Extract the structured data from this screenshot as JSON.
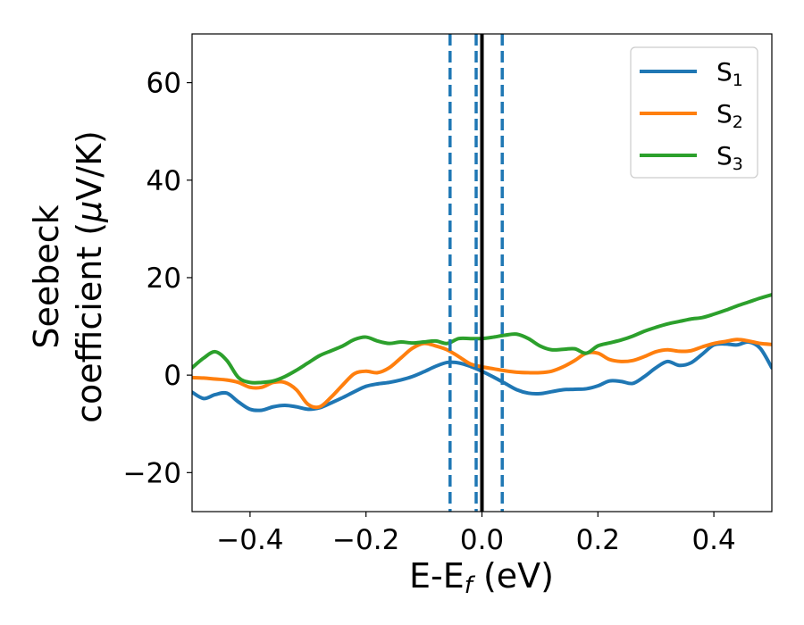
{
  "chart_data": {
    "type": "line",
    "xlabel": "E-E",
    "xlabel_sub": "f",
    "xlabel_unit": " (eV)",
    "ylabel_line1": "Seebeck",
    "ylabel_line2": "coefficient  (",
    "ylabel_mu": "μ",
    "ylabel_unit": "V/K)",
    "xlim": [
      -0.5,
      0.5
    ],
    "ylim": [
      -28,
      70
    ],
    "xticks": [
      -0.4,
      -0.2,
      0.0,
      0.2,
      0.4
    ],
    "xtick_labels": [
      "−0.4",
      "−0.2",
      "0.0",
      "0.2",
      "0.4"
    ],
    "yticks": [
      -20,
      0,
      20,
      40,
      60
    ],
    "ytick_labels": [
      "−20",
      "0",
      "20",
      "40",
      "60"
    ],
    "legend_position": "top-right",
    "vlines": {
      "solid": {
        "x": 0.0,
        "color": "#000000"
      },
      "dashed": {
        "x": [
          -0.055,
          -0.01,
          0.035
        ],
        "color": "#1f77b4"
      }
    },
    "series": [
      {
        "name": "S",
        "subscript": "1",
        "color": "#1f77b4",
        "points": [
          [
            -0.5,
            -3.5
          ],
          [
            -0.48,
            -4.8
          ],
          [
            -0.46,
            -4
          ],
          [
            -0.44,
            -3.7
          ],
          [
            -0.42,
            -5.5
          ],
          [
            -0.4,
            -7
          ],
          [
            -0.38,
            -7.2
          ],
          [
            -0.36,
            -6.5
          ],
          [
            -0.34,
            -6.2
          ],
          [
            -0.32,
            -6.5
          ],
          [
            -0.3,
            -7
          ],
          [
            -0.28,
            -6.7
          ],
          [
            -0.26,
            -5.7
          ],
          [
            -0.24,
            -4.6
          ],
          [
            -0.22,
            -3.4
          ],
          [
            -0.2,
            -2.3
          ],
          [
            -0.18,
            -1.8
          ],
          [
            -0.16,
            -1.5
          ],
          [
            -0.14,
            -1
          ],
          [
            -0.12,
            -0.3
          ],
          [
            -0.1,
            0.7
          ],
          [
            -0.08,
            1.8
          ],
          [
            -0.06,
            2.6
          ],
          [
            -0.04,
            2.5
          ],
          [
            -0.02,
            1.8
          ],
          [
            0,
            0.8
          ],
          [
            0.02,
            -0.4
          ],
          [
            0.04,
            -1.7
          ],
          [
            0.06,
            -3
          ],
          [
            0.08,
            -3.7
          ],
          [
            0.1,
            -3.8
          ],
          [
            0.12,
            -3.4
          ],
          [
            0.14,
            -3
          ],
          [
            0.16,
            -2.9
          ],
          [
            0.18,
            -2.8
          ],
          [
            0.2,
            -2.2
          ],
          [
            0.22,
            -1.2
          ],
          [
            0.24,
            -1.3
          ],
          [
            0.26,
            -1.7
          ],
          [
            0.28,
            -0.3
          ],
          [
            0.3,
            1.5
          ],
          [
            0.32,
            2.8
          ],
          [
            0.34,
            2
          ],
          [
            0.36,
            2.5
          ],
          [
            0.38,
            4.3
          ],
          [
            0.4,
            6.2
          ],
          [
            0.42,
            6.4
          ],
          [
            0.44,
            6.2
          ],
          [
            0.46,
            6.8
          ],
          [
            0.48,
            5.5
          ],
          [
            0.5,
            1.5
          ]
        ]
      },
      {
        "name": "S",
        "subscript": "2",
        "color": "#ff7f0e",
        "points": [
          [
            -0.5,
            -0.5
          ],
          [
            -0.48,
            -0.6
          ],
          [
            -0.46,
            -0.8
          ],
          [
            -0.44,
            -1
          ],
          [
            -0.42,
            -1.5
          ],
          [
            -0.4,
            -2.5
          ],
          [
            -0.38,
            -2.5
          ],
          [
            -0.36,
            -1.5
          ],
          [
            -0.34,
            -1.5
          ],
          [
            -0.32,
            -3
          ],
          [
            -0.3,
            -6
          ],
          [
            -0.28,
            -6.5
          ],
          [
            -0.26,
            -4.5
          ],
          [
            -0.24,
            -2
          ],
          [
            -0.22,
            0.3
          ],
          [
            -0.2,
            0.8
          ],
          [
            -0.18,
            0.5
          ],
          [
            -0.16,
            1.5
          ],
          [
            -0.14,
            3.5
          ],
          [
            -0.12,
            5.5
          ],
          [
            -0.1,
            6.5
          ],
          [
            -0.08,
            6
          ],
          [
            -0.06,
            5.2
          ],
          [
            -0.04,
            3.8
          ],
          [
            -0.02,
            2.3
          ],
          [
            0,
            1.7
          ],
          [
            0.02,
            1.3
          ],
          [
            0.04,
            0.9
          ],
          [
            0.06,
            0.6
          ],
          [
            0.08,
            0.5
          ],
          [
            0.1,
            0.5
          ],
          [
            0.12,
            0.8
          ],
          [
            0.14,
            1.7
          ],
          [
            0.16,
            3
          ],
          [
            0.18,
            4.5
          ],
          [
            0.2,
            4.5
          ],
          [
            0.22,
            3.2
          ],
          [
            0.24,
            2.8
          ],
          [
            0.26,
            3
          ],
          [
            0.28,
            3.8
          ],
          [
            0.3,
            4.8
          ],
          [
            0.32,
            5.2
          ],
          [
            0.34,
            4.9
          ],
          [
            0.36,
            5
          ],
          [
            0.38,
            5.8
          ],
          [
            0.4,
            6.5
          ],
          [
            0.42,
            6.9
          ],
          [
            0.44,
            7.3
          ],
          [
            0.46,
            7
          ],
          [
            0.48,
            6.5
          ],
          [
            0.5,
            6.3
          ]
        ]
      },
      {
        "name": "S",
        "subscript": "3",
        "color": "#2ca02c",
        "points": [
          [
            -0.5,
            1.5
          ],
          [
            -0.48,
            3.5
          ],
          [
            -0.46,
            4.8
          ],
          [
            -0.44,
            3
          ],
          [
            -0.42,
            -0.5
          ],
          [
            -0.4,
            -1.5
          ],
          [
            -0.38,
            -1.5
          ],
          [
            -0.36,
            -1.2
          ],
          [
            -0.34,
            -0.3
          ],
          [
            -0.32,
            1
          ],
          [
            -0.3,
            2.5
          ],
          [
            -0.28,
            4
          ],
          [
            -0.26,
            5
          ],
          [
            -0.24,
            6
          ],
          [
            -0.22,
            7.3
          ],
          [
            -0.2,
            7.8
          ],
          [
            -0.18,
            7
          ],
          [
            -0.16,
            6.5
          ],
          [
            -0.14,
            6.8
          ],
          [
            -0.12,
            6.6
          ],
          [
            -0.1,
            6.8
          ],
          [
            -0.08,
            7
          ],
          [
            -0.06,
            6.5
          ],
          [
            -0.04,
            7.5
          ],
          [
            -0.02,
            7.5
          ],
          [
            0,
            7.5
          ],
          [
            0.02,
            7.8
          ],
          [
            0.04,
            8.2
          ],
          [
            0.06,
            8.4
          ],
          [
            0.08,
            7.5
          ],
          [
            0.1,
            6
          ],
          [
            0.12,
            5.2
          ],
          [
            0.14,
            5.3
          ],
          [
            0.16,
            5.4
          ],
          [
            0.18,
            4.5
          ],
          [
            0.2,
            6
          ],
          [
            0.22,
            6.6
          ],
          [
            0.24,
            7.2
          ],
          [
            0.26,
            8
          ],
          [
            0.28,
            9
          ],
          [
            0.3,
            9.8
          ],
          [
            0.32,
            10.5
          ],
          [
            0.34,
            11
          ],
          [
            0.36,
            11.5
          ],
          [
            0.38,
            11.8
          ],
          [
            0.4,
            12.5
          ],
          [
            0.42,
            13.3
          ],
          [
            0.44,
            14.2
          ],
          [
            0.46,
            15
          ],
          [
            0.48,
            15.8
          ],
          [
            0.5,
            16.5
          ]
        ]
      }
    ]
  }
}
